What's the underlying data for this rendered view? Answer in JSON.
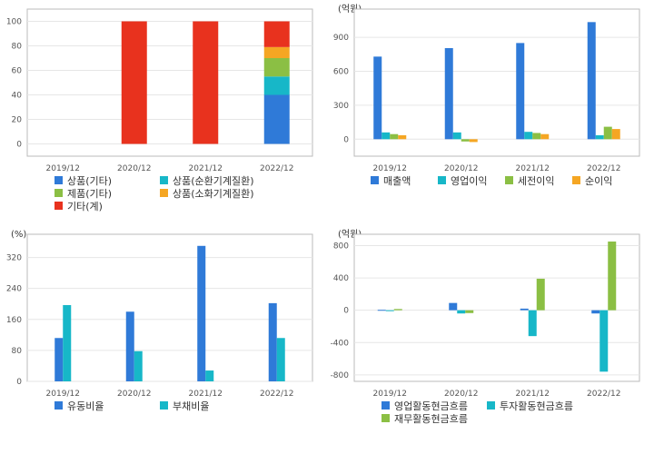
{
  "colors": {
    "blue": "#2f7ad8",
    "teal": "#17b7c8",
    "green": "#8bbf44",
    "orange": "#f5a623",
    "red": "#e8321e",
    "grid": "#e6e6e6",
    "frame": "#bbbbbb"
  },
  "chart_data": [
    {
      "id": "composition",
      "type": "bar",
      "stacked": true,
      "unit": "",
      "categories": [
        "2019/12",
        "2020/12",
        "2021/12",
        "2022/12"
      ],
      "ylim": [
        -10,
        110
      ],
      "yticks": [
        0,
        20,
        40,
        60,
        80,
        100
      ],
      "grid": true,
      "legend_position": "bottom",
      "series": [
        {
          "name": "상품(기타)",
          "color": "#2f7ad8",
          "values": [
            0,
            0,
            0,
            40
          ]
        },
        {
          "name": "상품(순환기계질환)",
          "color": "#17b7c8",
          "values": [
            0,
            0,
            0,
            15
          ]
        },
        {
          "name": "제품(기타)",
          "color": "#8bbf44",
          "values": [
            0,
            0,
            0,
            15
          ]
        },
        {
          "name": "상품(소화기계질환)",
          "color": "#f5a623",
          "values": [
            0,
            0,
            0,
            9
          ]
        },
        {
          "name": "기타(계)",
          "color": "#e8321e",
          "values": [
            0,
            100,
            100,
            21
          ]
        }
      ]
    },
    {
      "id": "income",
      "type": "bar",
      "unit": "(억원)",
      "categories": [
        "2019/12",
        "2020/12",
        "2021/12",
        "2022/12"
      ],
      "ylim": [
        -150,
        1150
      ],
      "yticks": [
        0,
        300,
        600,
        900
      ],
      "grid": true,
      "legend_position": "bottom",
      "series": [
        {
          "name": "매출액",
          "color": "#2f7ad8",
          "values": [
            730,
            805,
            850,
            1035
          ]
        },
        {
          "name": "영업이익",
          "color": "#17b7c8",
          "values": [
            60,
            60,
            65,
            35
          ]
        },
        {
          "name": "세전이익",
          "color": "#8bbf44",
          "values": [
            45,
            -20,
            55,
            110
          ]
        },
        {
          "name": "순이익",
          "color": "#f5a623",
          "values": [
            35,
            -25,
            45,
            90
          ]
        }
      ]
    },
    {
      "id": "ratios",
      "type": "bar",
      "unit": "(%)",
      "categories": [
        "2019/12",
        "2020/12",
        "2021/12",
        "2022/12"
      ],
      "ylim": [
        0,
        380
      ],
      "yticks": [
        0,
        80,
        160,
        240,
        320
      ],
      "grid": true,
      "legend_position": "bottom",
      "series": [
        {
          "name": "유동비율",
          "color": "#2f7ad8",
          "values": [
            112,
            180,
            350,
            202
          ]
        },
        {
          "name": "부채비율",
          "color": "#17b7c8",
          "values": [
            197,
            78,
            28,
            112
          ]
        }
      ]
    },
    {
      "id": "cashflow",
      "type": "bar",
      "unit": "(억원)",
      "categories": [
        "2019/12",
        "2020/12",
        "2021/12",
        "2022/12"
      ],
      "ylim": [
        -880,
        940
      ],
      "yticks": [
        -800,
        -400,
        0,
        400,
        800
      ],
      "grid": true,
      "legend_position": "bottom",
      "series": [
        {
          "name": "영업활동현금흐름",
          "color": "#2f7ad8",
          "values": [
            5,
            90,
            20,
            -40
          ]
        },
        {
          "name": "투자활동현금흐름",
          "color": "#17b7c8",
          "values": [
            -10,
            -40,
            -320,
            -760
          ]
        },
        {
          "name": "재무활동현금흐름",
          "color": "#8bbf44",
          "values": [
            15,
            -35,
            390,
            850
          ]
        }
      ]
    }
  ]
}
